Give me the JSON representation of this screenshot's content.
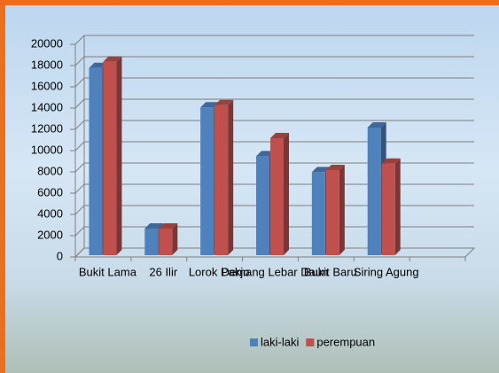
{
  "chart_data": {
    "type": "bar3d",
    "categories": [
      "Bukit Lama",
      "26 Ilir",
      "Lorok Pakjo",
      "Demang Lebar Daun",
      "Bukit Baru",
      "Siring Agung"
    ],
    "series": [
      {
        "name": "laki-laki",
        "color": "#4f81bd",
        "values": [
          17600,
          2500,
          13900,
          9300,
          7800,
          12000
        ]
      },
      {
        "name": "perempuan",
        "color": "#c0504d",
        "values": [
          18200,
          2500,
          14100,
          11000,
          8000,
          8600
        ]
      }
    ],
    "ylim": [
      0,
      20000
    ],
    "yticks": [
      0,
      2000,
      4000,
      6000,
      8000,
      10000,
      12000,
      14000,
      16000,
      18000,
      20000
    ],
    "grid": true,
    "legend": "bottom-right"
  }
}
